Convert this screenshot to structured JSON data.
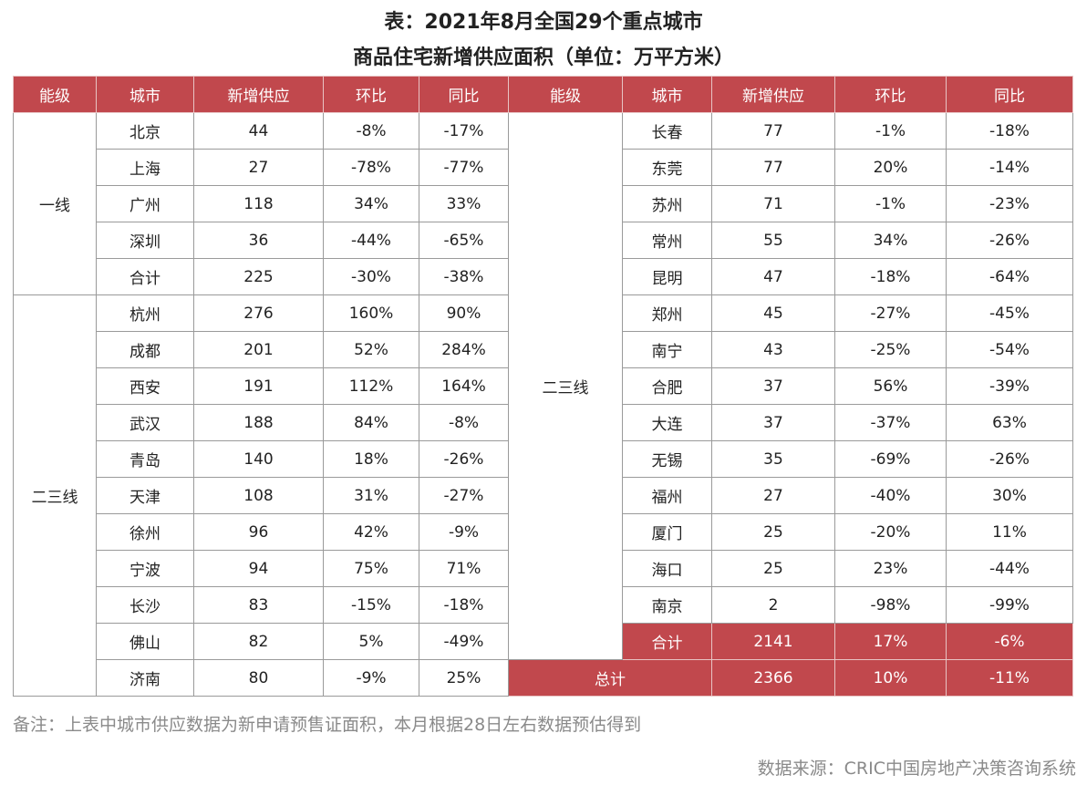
{
  "title": [
    "表：2021年8月全国29个重点城市",
    "商品住宅新增供应面积（单位：万平方米）"
  ],
  "columns": [
    "能级",
    "城市",
    "新增供应",
    "环比",
    "同比",
    "能级",
    "城市",
    "新增供应",
    "环比",
    "同比"
  ],
  "left": [
    {
      "tier": "一线",
      "rows": [
        [
          "北京",
          44,
          "-8%",
          "-17%"
        ],
        [
          "上海",
          27,
          "-78%",
          "-77%"
        ],
        [
          "广州",
          118,
          "34%",
          "33%"
        ],
        [
          "深圳",
          36,
          "-44%",
          "-65%"
        ],
        [
          "合计",
          225,
          "-30%",
          "-38%"
        ]
      ]
    },
    {
      "tier": "二三线",
      "rows": [
        [
          "杭州",
          276,
          "160%",
          "90%"
        ],
        [
          "成都",
          201,
          "52%",
          "284%"
        ],
        [
          "西安",
          191,
          "112%",
          "164%"
        ],
        [
          "武汉",
          188,
          "84%",
          "-8%"
        ],
        [
          "青岛",
          140,
          "18%",
          "-26%"
        ],
        [
          "天津",
          108,
          "31%",
          "-27%"
        ],
        [
          "徐州",
          96,
          "42%",
          "-9%"
        ],
        [
          "宁波",
          94,
          "75%",
          "71%"
        ],
        [
          "长沙",
          83,
          "-15%",
          "-18%"
        ],
        [
          "佛山",
          82,
          "5%",
          "-49%"
        ],
        [
          "济南",
          80,
          "-9%",
          "25%"
        ]
      ]
    }
  ],
  "right": {
    "tier": "二三线",
    "rows": [
      [
        "长春",
        77,
        "-1%",
        "-18%"
      ],
      [
        "东莞",
        77,
        "20%",
        "-14%"
      ],
      [
        "苏州",
        71,
        "-1%",
        "-23%"
      ],
      [
        "常州",
        55,
        "34%",
        "-26%"
      ],
      [
        "昆明",
        47,
        "-18%",
        "-64%"
      ],
      [
        "郑州",
        45,
        "-27%",
        "-45%"
      ],
      [
        "南宁",
        43,
        "-25%",
        "-54%"
      ],
      [
        "合肥",
        37,
        "56%",
        "-39%"
      ],
      [
        "大连",
        37,
        "-37%",
        "63%"
      ],
      [
        "无锡",
        35,
        "-69%",
        "-26%"
      ],
      [
        "福州",
        27,
        "-40%",
        "30%"
      ],
      [
        "厦门",
        25,
        "-20%",
        "11%"
      ],
      [
        "海口",
        25,
        "23%",
        "-44%"
      ],
      [
        "南京",
        2,
        "-98%",
        "-99%"
      ]
    ],
    "subtotal": [
      "合计",
      2141,
      "17%",
      "-6%"
    ]
  },
  "total": [
    "总计",
    2366,
    "10%",
    "-11%"
  ],
  "note": "备注：上表中城市供应数据为新申请预售证面积，本月根据28日左右数据预估得到",
  "source": "数据来源：CRIC中国房地产决策咨询系统"
}
